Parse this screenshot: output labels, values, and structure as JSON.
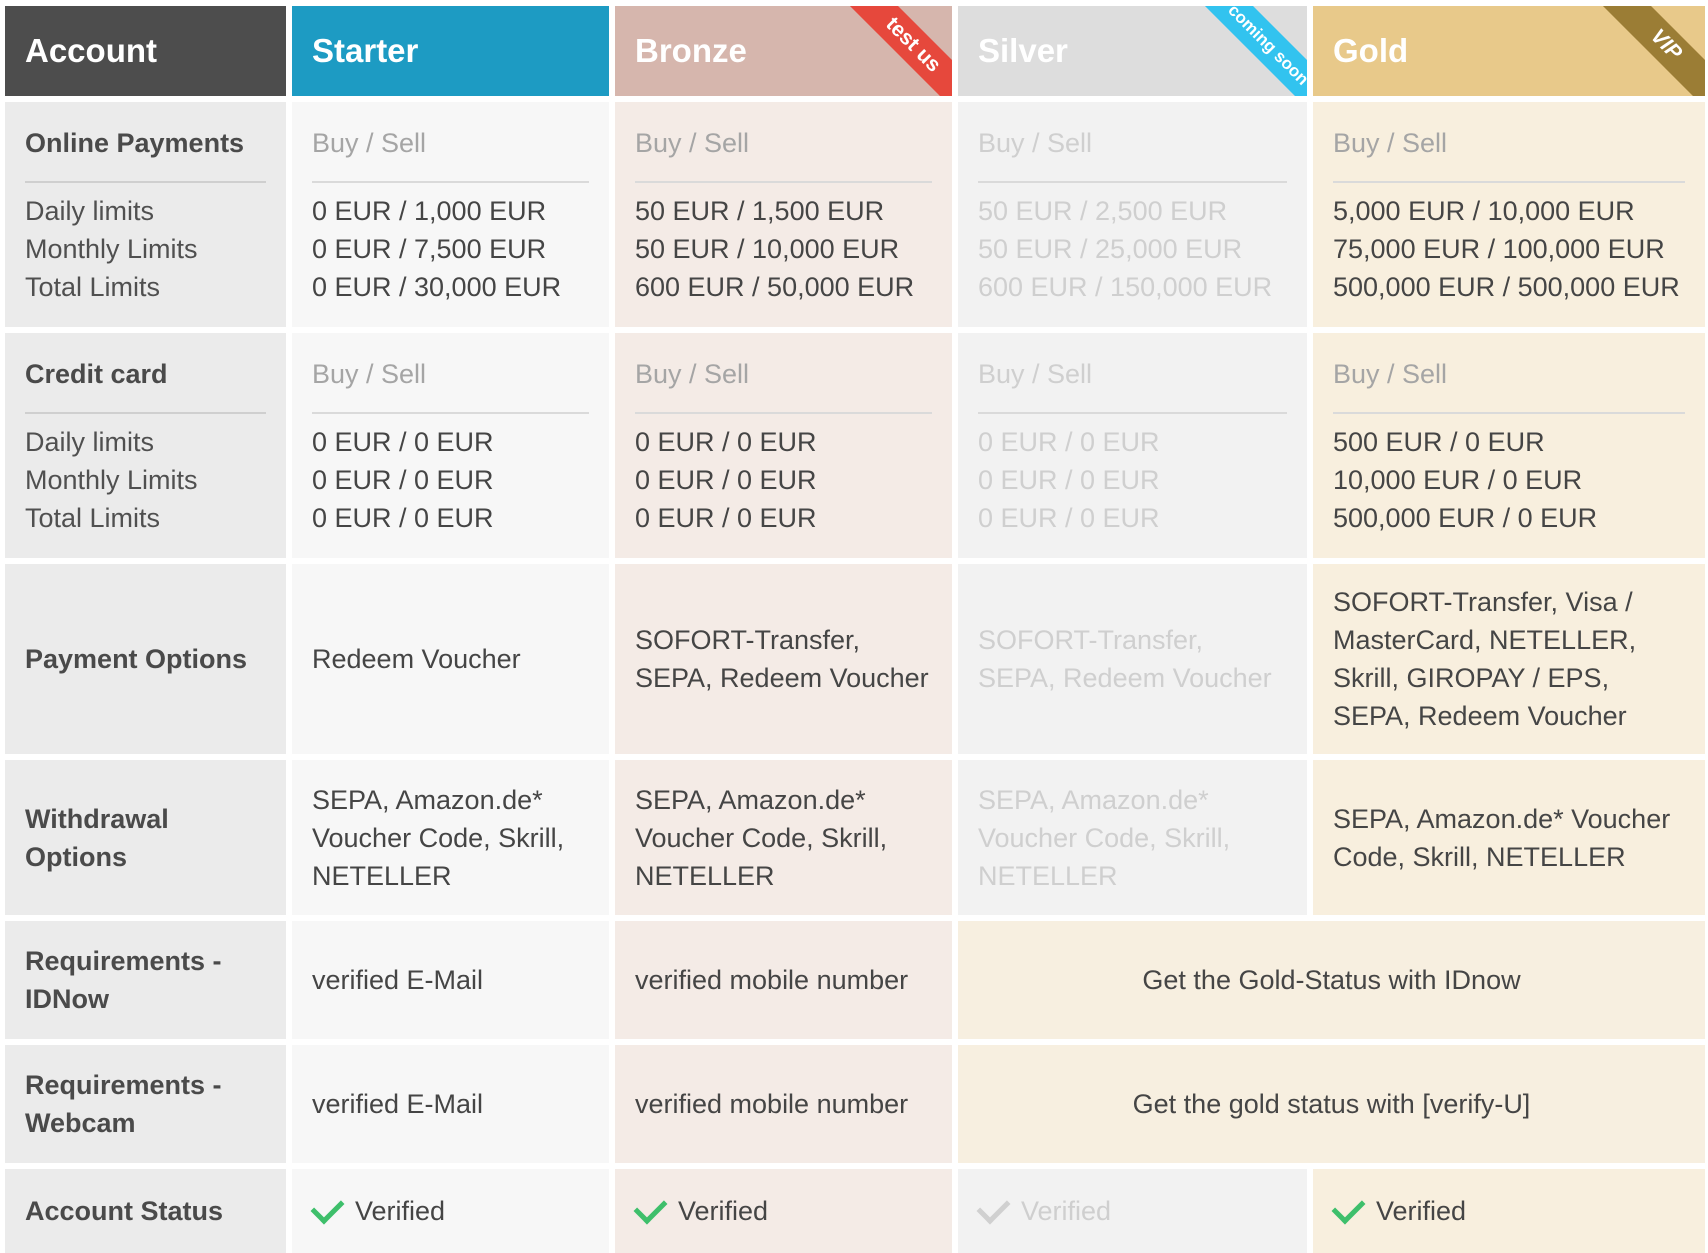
{
  "header": {
    "account": "Account",
    "starter": "Starter",
    "bronze": "Bronze",
    "silver": "Silver",
    "gold": "Gold",
    "ribbons": {
      "bronze": "test us",
      "silver": "coming soon",
      "gold": "VIP"
    }
  },
  "online": {
    "label": "Online Payments",
    "sub": [
      "Daily limits",
      "Monthly Limits",
      "Total Limits"
    ],
    "buy_sell": "Buy / Sell",
    "starter": [
      "0 EUR / 1,000 EUR",
      "0 EUR / 7,500 EUR",
      "0 EUR / 30,000 EUR"
    ],
    "bronze": [
      "50 EUR / 1,500 EUR",
      "50 EUR / 10,000 EUR",
      "600 EUR / 50,000 EUR"
    ],
    "silver": [
      "50 EUR / 2,500 EUR",
      "50 EUR / 25,000 EUR",
      "600 EUR / 150,000 EUR"
    ],
    "gold": [
      "5,000 EUR / 10,000 EUR",
      "75,000 EUR / 100,000 EUR",
      "500,000 EUR / 500,000 EUR"
    ]
  },
  "credit": {
    "label": "Credit card",
    "sub": [
      "Daily limits",
      "Monthly Limits",
      "Total Limits"
    ],
    "buy_sell": "Buy / Sell",
    "starter": [
      "0 EUR / 0 EUR",
      "0 EUR / 0 EUR",
      "0 EUR / 0 EUR"
    ],
    "bronze": [
      "0 EUR / 0 EUR",
      "0 EUR / 0 EUR",
      "0 EUR / 0 EUR"
    ],
    "silver": [
      "0 EUR / 0 EUR",
      "0 EUR / 0 EUR",
      "0 EUR / 0 EUR"
    ],
    "gold": [
      "500 EUR / 0 EUR",
      "10,000 EUR / 0 EUR",
      "500,000 EUR / 0 EUR"
    ]
  },
  "payment": {
    "label": "Payment Options",
    "starter": "Redeem Voucher",
    "bronze": "SOFORT-Transfer, SEPA, Redeem Voucher",
    "silver": "SOFORT-Transfer, SEPA, Redeem Voucher",
    "gold": "SOFORT-Transfer, Visa / MasterCard, NETELLER, Skrill, GIROPAY / EPS, SEPA, Redeem Voucher"
  },
  "withdrawal": {
    "label": "Withdrawal Options",
    "starter": "SEPA, Amazon.de* Voucher Code, Skrill, NETELLER",
    "bronze": "SEPA, Amazon.de* Voucher Code, Skrill, NETELLER",
    "silver": "SEPA, Amazon.de* Voucher Code, Skrill, NETELLER",
    "gold": "SEPA, Amazon.de* Voucher Code, Skrill, NETELLER"
  },
  "idnow": {
    "label": "Requirements - IDNow",
    "starter": "verified E-Mail",
    "bronze": "verified mobile number",
    "merged": "Get the Gold-Status with IDnow"
  },
  "webcam": {
    "label": "Requirements - Webcam",
    "starter": "verified E-Mail",
    "bronze": "verified mobile number",
    "merged": "Get the gold status with [verify-U]"
  },
  "status": {
    "label": "Account Status",
    "starter": "Verified",
    "bronze": "Verified",
    "silver": "Verified",
    "gold": "Verified"
  },
  "colors": {
    "starter": "#1d9bc3",
    "bronze": "#d6b6ad",
    "silver": "#dddddd",
    "gold": "#e8c98a",
    "check": "#3ebf6b"
  }
}
